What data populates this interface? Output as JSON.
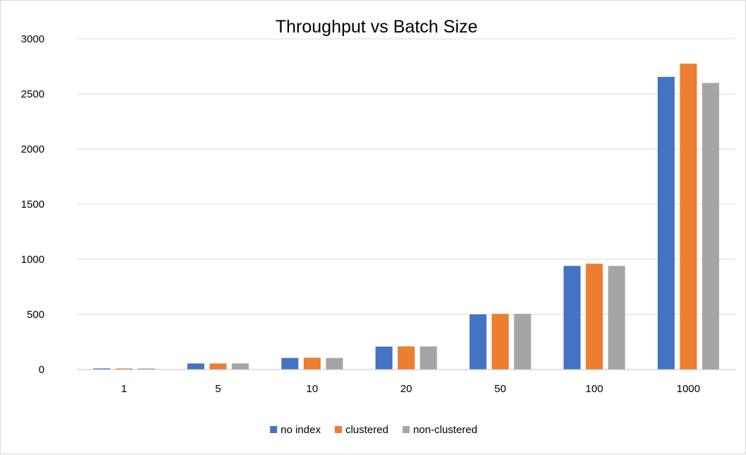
{
  "chart_data": {
    "type": "bar",
    "title": "Throughput vs Batch Size",
    "xlabel": "",
    "ylabel": "",
    "categories": [
      "1",
      "5",
      "10",
      "20",
      "50",
      "100",
      "1000"
    ],
    "series": [
      {
        "name": "no index",
        "color": "#4472C4",
        "values": [
          10,
          55,
          105,
          208,
          500,
          940,
          2655
        ]
      },
      {
        "name": "clustered",
        "color": "#ED7D31",
        "values": [
          10,
          55,
          107,
          210,
          505,
          960,
          2775
        ]
      },
      {
        "name": "non-clustered",
        "color": "#A5A5A5",
        "values": [
          10,
          55,
          105,
          209,
          505,
          940,
          2600
        ]
      }
    ],
    "ylim": [
      0,
      3000
    ],
    "yticks": [
      0,
      500,
      1000,
      1500,
      2000,
      2500,
      3000
    ],
    "grid": true,
    "legend": "bottom"
  }
}
